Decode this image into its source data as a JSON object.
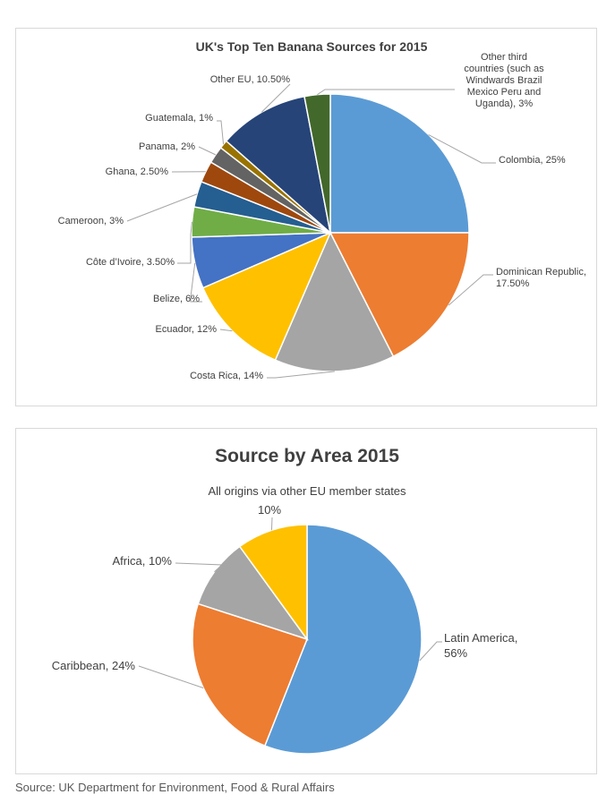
{
  "chart_data": [
    {
      "type": "pie",
      "title": "UK's Top Ten Banana Sources for 2015",
      "slices": [
        {
          "name": "Colombia",
          "value": 25,
          "label": [
            "Colombia, 25%"
          ],
          "color": "#5b9bd5"
        },
        {
          "name": "Dominican Republic",
          "value": 17.5,
          "label": [
            "Dominican Republic,",
            "17.50%"
          ],
          "color": "#ed7d31"
        },
        {
          "name": "Costa Rica",
          "value": 14,
          "label": [
            "Costa Rica, 14%"
          ],
          "color": "#a5a5a5"
        },
        {
          "name": "Ecuador",
          "value": 12,
          "label": [
            "Ecuador, 12%"
          ],
          "color": "#ffc000"
        },
        {
          "name": "Belize",
          "value": 6,
          "label": [
            "Belize, 6%"
          ],
          "color": "#4472c4"
        },
        {
          "name": "Côte d'Ivoire",
          "value": 3.5,
          "label": [
            "Côte d’Ivoire, 3.50%"
          ],
          "color": "#70ad47"
        },
        {
          "name": "Cameroon",
          "value": 3,
          "label": [
            "Cameroon, 3%"
          ],
          "color": "#255e91"
        },
        {
          "name": "Ghana",
          "value": 2.5,
          "label": [
            "Ghana, 2.50%"
          ],
          "color": "#9e480e"
        },
        {
          "name": "Panama",
          "value": 2,
          "label": [
            "Panama, 2%"
          ],
          "color": "#636363"
        },
        {
          "name": "Guatemala",
          "value": 1,
          "label": [
            "Guatemala, 1%"
          ],
          "color": "#997300"
        },
        {
          "name": "Other EU",
          "value": 10.5,
          "label": [
            "Other EU, 10.50%"
          ],
          "color": "#264478"
        },
        {
          "name": "Other third countries (such as Windwards Brazil Mexico Peru and Uganda)",
          "value": 3,
          "label": [
            "Other third",
            "countries (such as",
            "Windwards Brazil",
            "Mexico Peru and",
            "Uganda), 3%"
          ],
          "color": "#43682b"
        }
      ]
    },
    {
      "type": "pie",
      "title": "Source by Area 2015",
      "subtitle": "All origins via other EU member states",
      "slices": [
        {
          "name": "Latin America",
          "value": 56,
          "label": [
            "Latin America,",
            "56%"
          ],
          "color": "#5b9bd5"
        },
        {
          "name": "Caribbean",
          "value": 24,
          "label": [
            "Caribbean, 24%"
          ],
          "color": "#ed7d31"
        },
        {
          "name": "Africa",
          "value": 10,
          "label": [
            "Africa, 10%"
          ],
          "color": "#a5a5a5"
        },
        {
          "name": "All origins via other EU member states",
          "value": 10,
          "label": [
            "10%"
          ],
          "color": "#ffc000"
        }
      ]
    }
  ],
  "source": "Source: UK Department for Environment, Food & Rural Affairs"
}
